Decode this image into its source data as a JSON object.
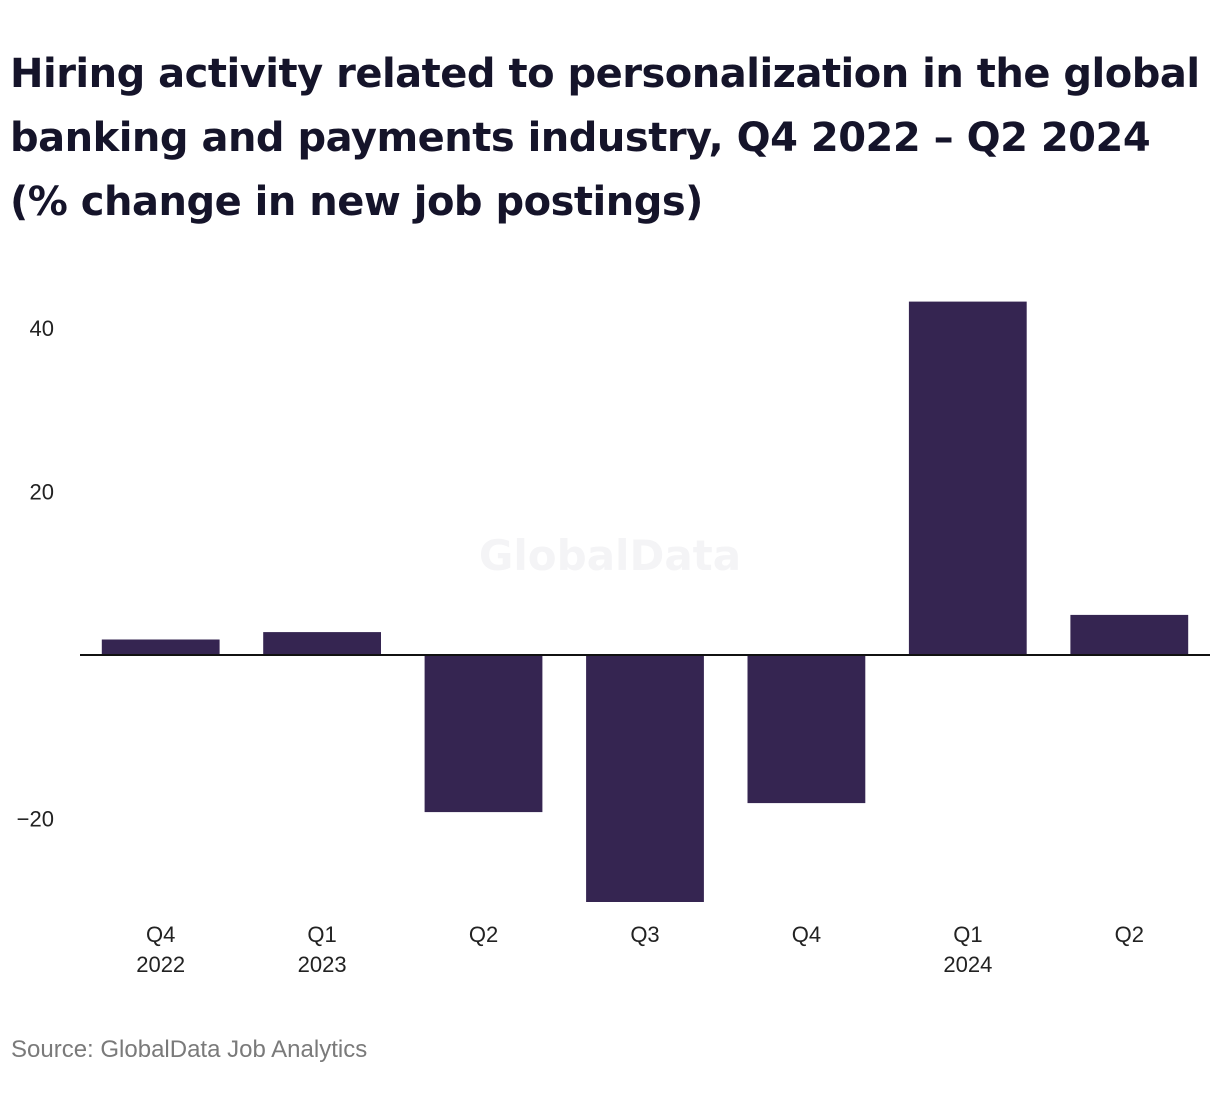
{
  "chart_data": {
    "type": "bar",
    "title": "Hiring activity related to personalization in the global banking and payments industry, Q4 2022 – Q2 2024 (% change in new job postings)",
    "categories": [
      [
        "Q4",
        "2022"
      ],
      [
        "Q1",
        "2023"
      ],
      [
        "Q2",
        ""
      ],
      [
        "Q3",
        ""
      ],
      [
        "Q4",
        ""
      ],
      [
        "Q1",
        "2024"
      ],
      [
        "Q2",
        ""
      ]
    ],
    "values": [
      1.9,
      2.8,
      -19.2,
      -30.2,
      -18.1,
      43.2,
      4.9
    ],
    "ylim": [
      -33,
      46
    ],
    "yticks": [
      {
        "value": 40,
        "label": "40"
      },
      {
        "value": 20,
        "label": "20"
      },
      {
        "value": -20,
        "label": "−20"
      }
    ],
    "xlabel": "",
    "ylabel": "",
    "grid": false,
    "bar_color": "#352551",
    "watermark": "GlobalData",
    "source": "Source: GlobalData Job Analytics"
  }
}
